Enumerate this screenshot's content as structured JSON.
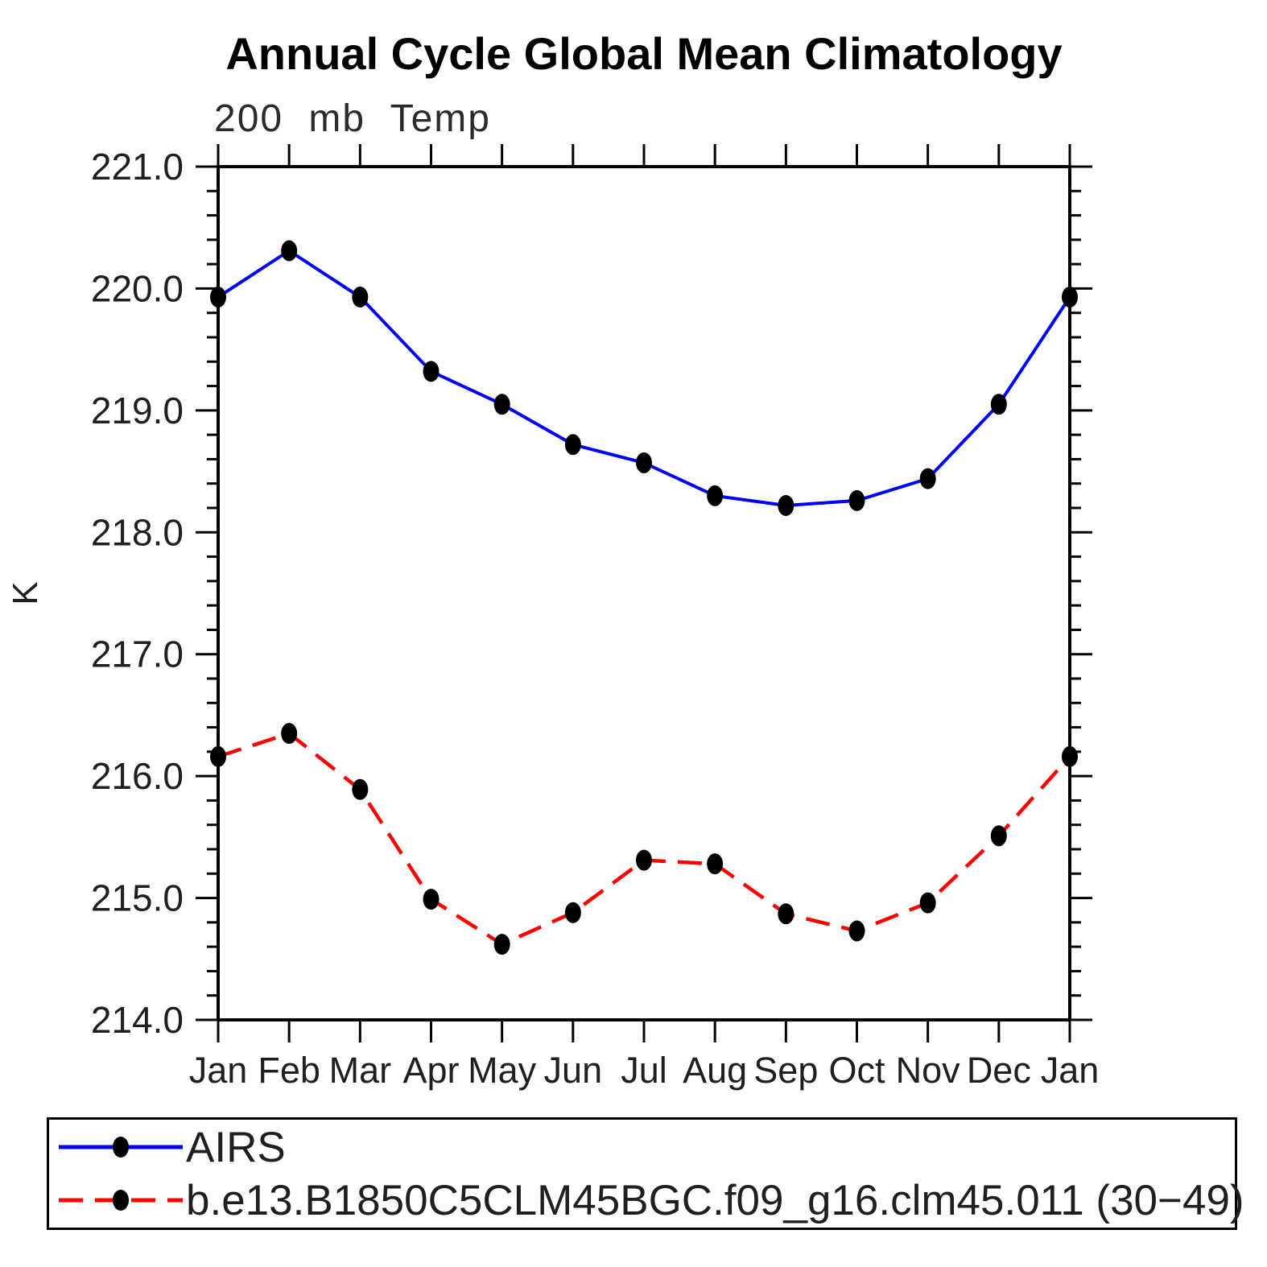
{
  "header": {
    "title": "Annual Cycle Global Mean Climatology",
    "subtitle": "200 mb Temp"
  },
  "axes": {
    "y_axis_label": "K",
    "y_tick_labels": [
      "221.0",
      "220.0",
      "219.0",
      "218.0",
      "217.0",
      "216.0",
      "215.0",
      "214.0"
    ],
    "x_tick_labels": [
      "Jan",
      "Feb",
      "Mar",
      "Apr",
      "May",
      "Jun",
      "Jul",
      "Aug",
      "Sep",
      "Oct",
      "Nov",
      "Dec",
      "Jan"
    ]
  },
  "legend": {
    "items": [
      {
        "label": "AIRS",
        "color": "#0000ff",
        "style": "solid"
      },
      {
        "label": "b.e13.B1850C5CLM45BGC.f09_g16.clm45.011 (30−49)",
        "color": "#ff0000",
        "style": "dashed"
      }
    ]
  },
  "chart_data": {
    "type": "line",
    "title": "Annual Cycle Global Mean Climatology",
    "subtitle": "200 mb Temp",
    "xlabel": "",
    "ylabel": "K",
    "ylim": [
      214.0,
      221.0
    ],
    "y_major_step": 1.0,
    "y_minor_step": 0.2,
    "grid": false,
    "legend_position": "bottom",
    "marker": {
      "shape": "filled-ellipse",
      "color": "#000000"
    },
    "categories": [
      "Jan",
      "Feb",
      "Mar",
      "Apr",
      "May",
      "Jun",
      "Jul",
      "Aug",
      "Sep",
      "Oct",
      "Nov",
      "Dec",
      "Jan"
    ],
    "series": [
      {
        "name": "AIRS",
        "color": "#0000ff",
        "line_style": "solid",
        "values": [
          219.93,
          220.31,
          219.93,
          219.32,
          219.05,
          218.72,
          218.57,
          218.3,
          218.22,
          218.26,
          218.44,
          219.05,
          219.93
        ]
      },
      {
        "name": "b.e13.B1850C5CLM45BGC.f09_g16.clm45.011 (30−49)",
        "color": "#ff0000",
        "line_style": "dashed",
        "values": [
          216.16,
          216.35,
          215.89,
          214.99,
          214.62,
          214.88,
          215.31,
          215.28,
          214.87,
          214.73,
          214.96,
          215.51,
          216.16
        ]
      }
    ]
  }
}
